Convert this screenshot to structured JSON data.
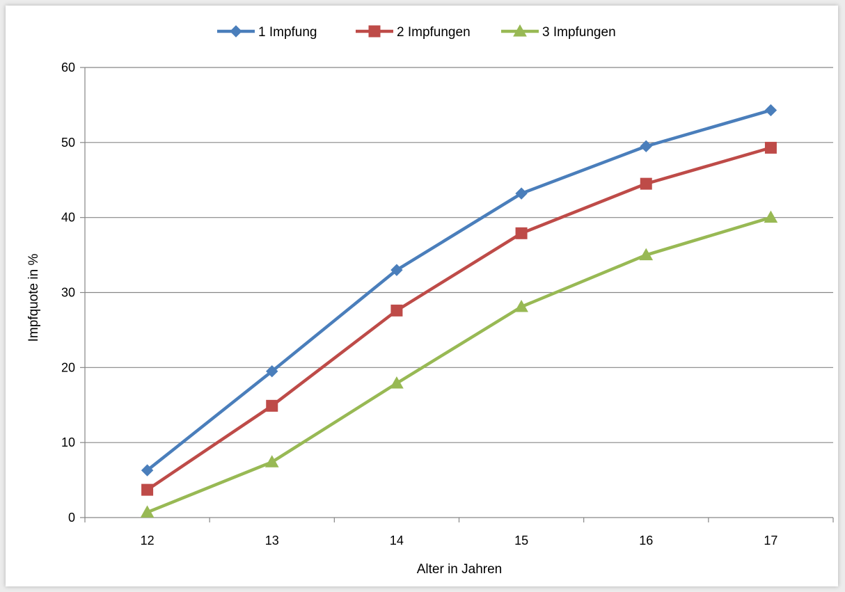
{
  "chart_data": {
    "type": "line",
    "title": "",
    "xlabel": "Alter in Jahren",
    "ylabel": "Impfquote in %",
    "categories": [
      "12",
      "13",
      "14",
      "15",
      "16",
      "17"
    ],
    "ylim": [
      0,
      60
    ],
    "yticks": [
      "0",
      "10",
      "20",
      "30",
      "40",
      "50",
      "60"
    ],
    "grid": "horizontal",
    "legend_position": "top-center",
    "series": [
      {
        "name": "1 Impfung",
        "values": [
          6.3,
          19.5,
          33.0,
          43.2,
          49.5,
          54.3
        ],
        "color": "#4a7ebb",
        "marker": "diamond"
      },
      {
        "name": "2 Impfungen",
        "values": [
          3.7,
          14.9,
          27.6,
          37.9,
          44.5,
          49.3
        ],
        "color": "#be4b48",
        "marker": "square"
      },
      {
        "name": "3 Impfungen",
        "values": [
          0.7,
          7.4,
          17.9,
          28.1,
          35.0,
          40.0
        ],
        "color": "#98b954",
        "marker": "triangle"
      }
    ]
  }
}
